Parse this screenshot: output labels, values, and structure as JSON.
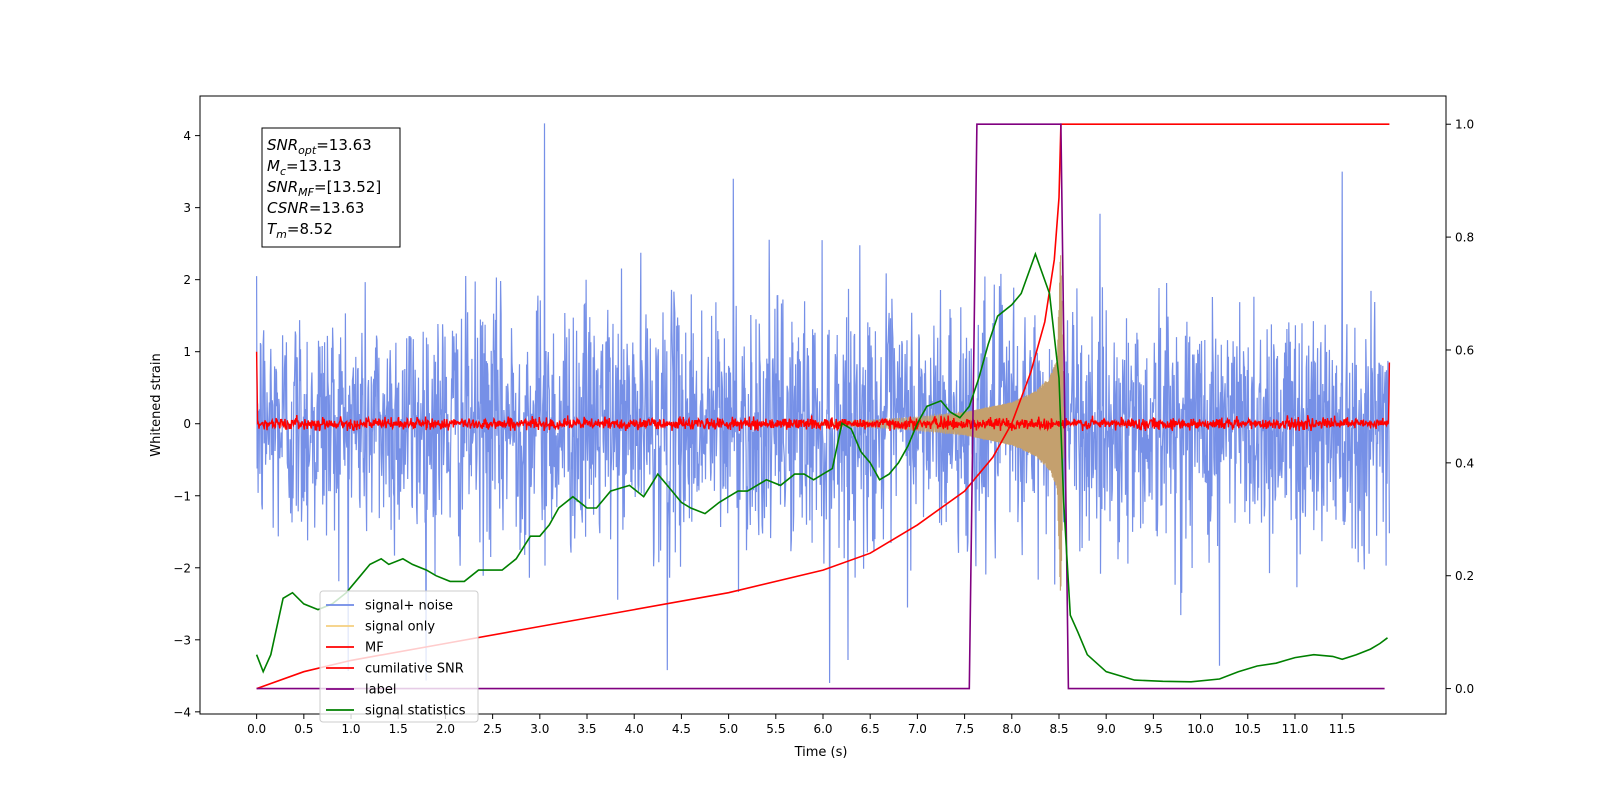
{
  "chart_data": {
    "type": "line",
    "xlabel": "Time (s)",
    "ylabel": "Whitened strain",
    "xlim": [
      -0.6,
      12.6
    ],
    "ylim": [
      -4.03,
      4.55
    ],
    "y2lim": [
      -0.045,
      1.05
    ],
    "x_ticks": [
      0.0,
      0.5,
      1.0,
      1.5,
      2.0,
      2.5,
      3.0,
      3.5,
      4.0,
      4.5,
      5.0,
      5.5,
      6.0,
      6.5,
      7.0,
      7.5,
      8.0,
      8.5,
      9.0,
      9.5,
      10.0,
      10.5,
      11.0,
      11.5
    ],
    "x_tick_labels": [
      "0.0",
      "0.5",
      "1.0",
      "1.5",
      "2.0",
      "2.5",
      "3.0",
      "3.5",
      "4.0",
      "4.5",
      "5.0",
      "5.5",
      "6.0",
      "6.5",
      "7.0",
      "7.5",
      "8.0",
      "8.5",
      "9.0",
      "9.5",
      "10.0",
      "10.5",
      "11.0",
      "11.5"
    ],
    "y_ticks": [
      -4,
      -3,
      -2,
      -1,
      0,
      1,
      2,
      3,
      4
    ],
    "y_tick_labels": [
      "−4",
      "−3",
      "−2",
      "−1",
      "0",
      "1",
      "2",
      "3",
      "4"
    ],
    "y2_ticks": [
      0.0,
      0.2,
      0.4,
      0.6,
      0.8,
      1.0
    ],
    "y2_tick_labels": [
      "0.0",
      "0.2",
      "0.4",
      "0.6",
      "0.8",
      "1.0"
    ],
    "annotation": {
      "lines": [
        {
          "main": "SNR",
          "sub": "opt",
          "value": "=13.63"
        },
        {
          "main": "M",
          "sub": "c",
          "value": "=13.13"
        },
        {
          "main": "SNR",
          "sub": "MF",
          "value": "=[13.52]"
        },
        {
          "main": "CSNR",
          "sub": "",
          "value": "=13.63"
        },
        {
          "main": "T",
          "sub": "m",
          "value": "=8.52"
        }
      ]
    },
    "legend": {
      "placement": "lower-left",
      "entries": [
        {
          "label": "signal+ noise",
          "color": "#6f8ae6"
        },
        {
          "label": "signal only",
          "color": "#f5cf7f"
        },
        {
          "label": "MF",
          "color": "#ff0000"
        },
        {
          "label": "cumilative SNR",
          "color": "#ff0000"
        },
        {
          "label": "label",
          "color": "#800080"
        },
        {
          "label": "signal statistics",
          "color": "#008000"
        }
      ]
    },
    "series": [
      {
        "name": "signal+ noise",
        "axis": "left",
        "color": "#6f8ae6",
        "kind": "noise",
        "x_range": [
          0.0,
          12.0
        ],
        "amplitude_range": [
          -3.6,
          4.2
        ],
        "notable_peaks": [
          [
            3.05,
            4.17
          ],
          [
            -0.0,
            2.05
          ],
          [
            5.05,
            3.4
          ],
          [
            6.07,
            -3.6
          ],
          [
            4.35,
            -3.42
          ],
          [
            10.2,
            -3.36
          ],
          [
            11.5,
            3.5
          ]
        ]
      },
      {
        "name": "signal only",
        "axis": "left",
        "color": "#c8a070",
        "kind": "chirp",
        "envelope": {
          "t": [
            6.5,
            7.0,
            7.5,
            8.0,
            8.25,
            8.4,
            8.48,
            8.52,
            8.55
          ],
          "a": [
            0.05,
            0.09,
            0.16,
            0.3,
            0.45,
            0.65,
            0.9,
            2.6,
            0.0
          ]
        }
      },
      {
        "name": "MF",
        "axis": "left",
        "color": "#ff0000",
        "kind": "noise",
        "x_range": [
          0.0,
          12.0
        ],
        "amplitude_range": [
          -0.1,
          0.12
        ],
        "edge_values": [
          [
            0.0,
            1.0
          ],
          [
            12.0,
            0.85
          ]
        ]
      },
      {
        "name": "cumilative SNR",
        "axis": "right",
        "color": "#ff0000",
        "kind": "line",
        "x": [
          0.0,
          0.5,
          1.0,
          2.0,
          3.0,
          4.0,
          5.0,
          6.0,
          6.5,
          7.0,
          7.5,
          7.8,
          8.0,
          8.2,
          8.35,
          8.45,
          8.5,
          8.52,
          12.0
        ],
        "y": [
          0.0,
          0.03,
          0.05,
          0.08,
          0.11,
          0.14,
          0.17,
          0.21,
          0.24,
          0.29,
          0.35,
          0.41,
          0.47,
          0.56,
          0.65,
          0.76,
          0.87,
          1.0,
          1.0
        ]
      },
      {
        "name": "label",
        "axis": "right",
        "color": "#800080",
        "kind": "line",
        "x": [
          0.0,
          7.55,
          7.63,
          8.52,
          8.6,
          11.95
        ],
        "y": [
          0.0,
          0.0,
          1.0,
          1.0,
          0.0,
          0.0
        ]
      },
      {
        "name": "signal statistics",
        "axis": "right",
        "color": "#008000",
        "kind": "line",
        "x": [
          0.0,
          0.07,
          0.15,
          0.28,
          0.38,
          0.5,
          0.65,
          0.8,
          0.95,
          1.1,
          1.2,
          1.32,
          1.4,
          1.55,
          1.65,
          1.8,
          1.9,
          2.05,
          2.2,
          2.35,
          2.45,
          2.6,
          2.75,
          2.9,
          3.0,
          3.1,
          3.2,
          3.35,
          3.5,
          3.6,
          3.75,
          3.95,
          4.1,
          4.25,
          4.35,
          4.5,
          4.6,
          4.75,
          4.9,
          5.0,
          5.1,
          5.2,
          5.3,
          5.4,
          5.55,
          5.7,
          5.8,
          5.9,
          6.0,
          6.1,
          6.2,
          6.3,
          6.4,
          6.5,
          6.6,
          6.7,
          6.8,
          6.9,
          7.0,
          7.1,
          7.25,
          7.35,
          7.45,
          7.55,
          7.65,
          7.75,
          7.85,
          8.0,
          8.1,
          8.25,
          8.4,
          8.5,
          8.55,
          8.62,
          8.7,
          8.8,
          9.0,
          9.3,
          9.6,
          9.9,
          10.2,
          10.4,
          10.6,
          10.8,
          10.9,
          11.0,
          11.2,
          11.4,
          11.5,
          11.65,
          11.8,
          11.9,
          11.98
        ],
        "y": [
          0.06,
          0.03,
          0.06,
          0.16,
          0.17,
          0.15,
          0.14,
          0.15,
          0.17,
          0.2,
          0.22,
          0.23,
          0.22,
          0.23,
          0.22,
          0.21,
          0.2,
          0.19,
          0.19,
          0.21,
          0.21,
          0.21,
          0.23,
          0.27,
          0.27,
          0.29,
          0.32,
          0.34,
          0.32,
          0.32,
          0.35,
          0.36,
          0.34,
          0.38,
          0.36,
          0.33,
          0.32,
          0.31,
          0.33,
          0.34,
          0.35,
          0.35,
          0.36,
          0.37,
          0.36,
          0.38,
          0.38,
          0.37,
          0.38,
          0.39,
          0.47,
          0.46,
          0.42,
          0.4,
          0.37,
          0.38,
          0.4,
          0.43,
          0.47,
          0.5,
          0.51,
          0.49,
          0.48,
          0.5,
          0.55,
          0.61,
          0.66,
          0.68,
          0.7,
          0.77,
          0.7,
          0.55,
          0.33,
          0.13,
          0.1,
          0.06,
          0.03,
          0.015,
          0.013,
          0.012,
          0.017,
          0.03,
          0.04,
          0.045,
          0.05,
          0.055,
          0.06,
          0.057,
          0.052,
          0.06,
          0.07,
          0.08,
          0.09
        ]
      }
    ]
  }
}
